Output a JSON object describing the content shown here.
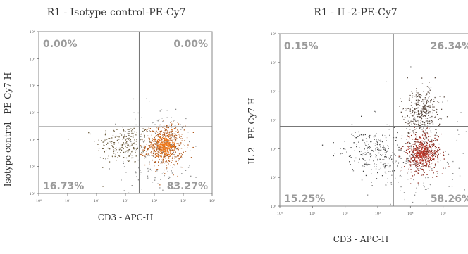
{
  "chart_data": [
    {
      "type": "scatter",
      "title": "R1 - Isotype control-PE-Cy7",
      "xlabel": "CD3 - APC-H",
      "ylabel": "Isotype control - PE-Cy7-H",
      "xscale": "log",
      "yscale": "log",
      "xlim": [
        1,
        1000000
      ],
      "ylim": [
        1,
        1000000
      ],
      "x_tick_labels": [
        "10⁰",
        "10¹",
        "10²",
        "10³",
        "10⁴",
        "10⁵",
        "10⁶"
      ],
      "y_tick_labels": [
        "10⁰",
        "10¹",
        "10²",
        "10³",
        "10⁴",
        "10⁵",
        "10⁶"
      ],
      "gate": {
        "x": 3000,
        "y": 300
      },
      "quadrants": {
        "upper_left": "0.00%",
        "upper_right": "0.00%",
        "lower_left": "16.73%",
        "lower_right": "83.27%"
      },
      "populations": [
        {
          "cx": 900,
          "cy": 70,
          "spread_x": 0.22,
          "spread_y": 0.17,
          "n": 220,
          "color": "#6b5c3e"
        },
        {
          "cx": 22000,
          "cy": 60,
          "spread_x": 0.15,
          "spread_y": 0.17,
          "n": 520,
          "color": "#b0571a"
        },
        {
          "cx": 22000,
          "cy": 60,
          "spread_x": 0.07,
          "spread_y": 0.08,
          "n": 260,
          "color": "#f07a1c"
        },
        {
          "cx": 15000,
          "cy": 30,
          "spread_x": 0.35,
          "spread_y": 0.45,
          "n": 160,
          "color": "#8a8a8a"
        }
      ],
      "grid": false
    },
    {
      "type": "scatter",
      "title": "R1 - IL-2-PE-Cy7",
      "xlabel": "CD3 - APC-H",
      "ylabel": "IL-2 - PE-Cy7-H",
      "xscale": "log",
      "yscale": "log",
      "xlim": [
        1,
        1000000
      ],
      "ylim": [
        1,
        1000000
      ],
      "x_tick_labels": [
        "10⁰",
        "10¹",
        "10²",
        "10³",
        "10⁴",
        "10⁵",
        "10⁶"
      ],
      "y_tick_labels": [
        "10⁰",
        "10¹",
        "10²",
        "10³",
        "10⁴",
        "10⁵",
        "10⁶"
      ],
      "gate": {
        "x": 3000,
        "y": 600
      },
      "quadrants": {
        "upper_left": "0.15%",
        "upper_right": "26.34%",
        "lower_left": "15.25%",
        "lower_right": "58.26%"
      },
      "populations": [
        {
          "cx": 700,
          "cy": 80,
          "spread_x": 0.22,
          "spread_y": 0.18,
          "n": 220,
          "color": "#444444"
        },
        {
          "cx": 22000,
          "cy": 70,
          "spread_x": 0.13,
          "spread_y": 0.17,
          "n": 440,
          "color": "#8a2a1e"
        },
        {
          "cx": 22000,
          "cy": 70,
          "spread_x": 0.07,
          "spread_y": 0.08,
          "n": 200,
          "color": "#c0392b"
        },
        {
          "cx": 22000,
          "cy": 1800,
          "spread_x": 0.12,
          "spread_y": 0.2,
          "n": 320,
          "color": "#5a4a40"
        },
        {
          "cx": 15000,
          "cy": 40,
          "spread_x": 0.35,
          "spread_y": 0.45,
          "n": 150,
          "color": "#8a8a8a"
        }
      ],
      "grid": false
    }
  ]
}
